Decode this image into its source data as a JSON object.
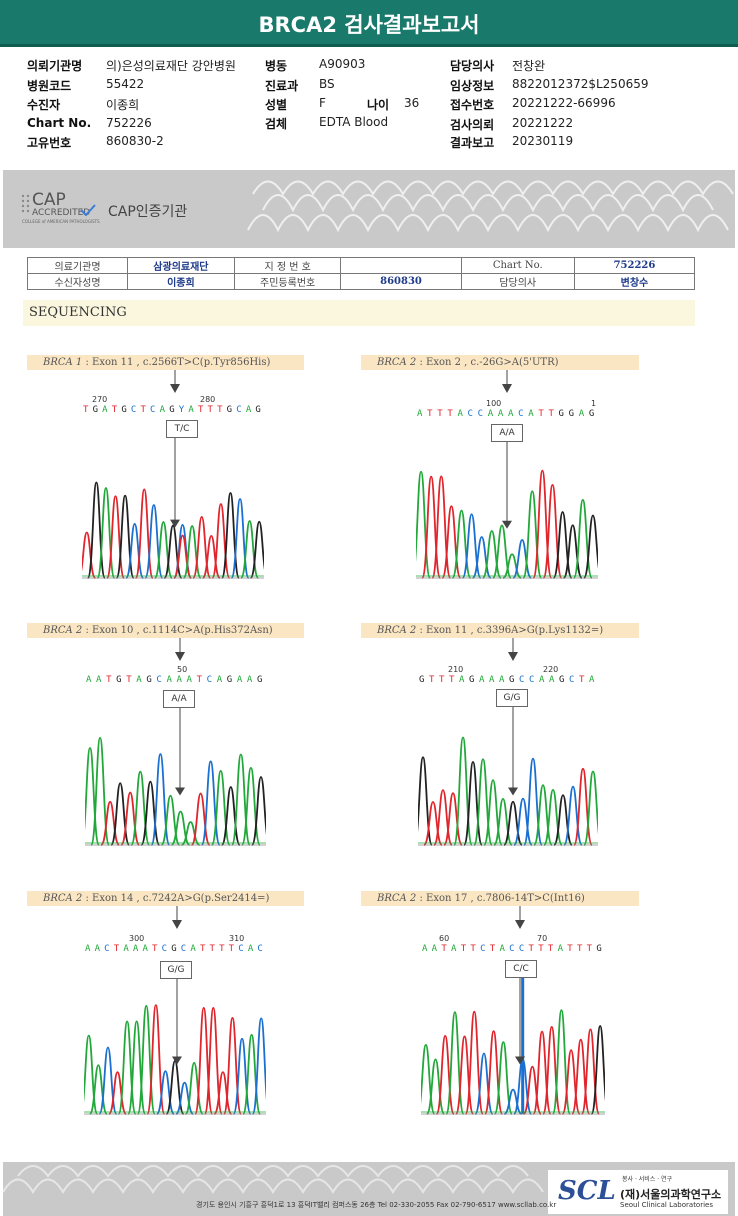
{
  "title": "BRCA2 검사결과보고서",
  "patient_info": [
    {
      "label": "의뢰기관명",
      "value": "의)은성의료재단 강안병원"
    },
    {
      "label": "병원코드",
      "value": "55422"
    },
    {
      "label": "수진자",
      "value": "이종희"
    },
    {
      "label": "Chart No.",
      "value": "752226"
    },
    {
      "label": "고유번호",
      "value": "860830-2"
    },
    {
      "label": "병동",
      "value": "A90903"
    },
    {
      "label": "진료과",
      "value": "BS"
    },
    {
      "label": "성별",
      "value": "F"
    },
    {
      "label": "나이",
      "value": "36"
    },
    {
      "label": "검체",
      "value": "EDTA Blood"
    },
    {
      "label": "담당의사",
      "value": "전창완"
    },
    {
      "label": "임상정보",
      "value": "8822012372$L250659"
    },
    {
      "label": "접수번호",
      "value": "20221222-66996"
    },
    {
      "label": "검사의뢰",
      "value": "20221222"
    },
    {
      "label": "결과보고",
      "value": "20230119"
    }
  ],
  "cap": {
    "logo_text": "CAP",
    "accredited": "ACCREDITED",
    "college": "COLLEGE of AMERICAN PATHOLOGISTS",
    "label": "CAP인증기관"
  },
  "lab_table": {
    "r1": [
      "의료기관명",
      "삼광의료재단",
      "지 정 번 호",
      "",
      "Chart No.",
      "752226"
    ],
    "r2": [
      "수신자성명",
      "이종희",
      "주민등록번호",
      "860830",
      "담당의사",
      "변창수"
    ]
  },
  "section": "SEQUENCING",
  "mutations": [
    {
      "gene": "BRCA 1",
      "desc": " : Exon 11 , c.2566T>C(p.Tyr856His)",
      "genotype": "T/C",
      "sequence": "TGATGCTCAGYATTTGCAG",
      "numbers": [
        "270",
        "280"
      ],
      "icon": "down-arrow-icon"
    },
    {
      "gene": "BRCA 2",
      "desc": " : Exon 2 , c.-26G>A(5'UTR)",
      "genotype": "A/A",
      "sequence": "ATTTACCAAACATTGGAG",
      "numbers": [
        "100",
        "1"
      ],
      "icon": "down-arrow-icon"
    },
    {
      "gene": "BRCA 2",
      "desc": " : Exon 10 , c.1114C>A(p.His372Asn)",
      "genotype": "A/A",
      "sequence": "AATGTAGCAAATCAGAAG",
      "numbers": [
        "50"
      ],
      "icon": "down-arrow-icon"
    },
    {
      "gene": "BRCA 2",
      "desc": " : Exon 11 , c.3396A>G(p.Lys1132=)",
      "genotype": "G/G",
      "sequence": "GTTTAGAAAGCCAAGCTA",
      "numbers": [
        "210",
        "220"
      ],
      "icon": "down-arrow-icon"
    },
    {
      "gene": "BRCA 2",
      "desc": " : Exon 14 , c.7242A>G(p.Ser2414=)",
      "genotype": "G/G",
      "sequence": "AACTAAATCGCATTTTCAC",
      "numbers": [
        "300",
        "310"
      ],
      "icon": "down-arrow-icon"
    },
    {
      "gene": "BRCA 2",
      "desc": " : Exon 17 , c.7806-14T>C(Int16)",
      "genotype": "C/C",
      "sequence": "AATATTCTACCTTTATTTG",
      "numbers": [
        "60",
        "70"
      ],
      "icon": "down-arrow-icon"
    }
  ],
  "footer": {
    "address": "경기도 용인시 기흥구 흥덕1로 13 흥덕IT밸리 컴퍼스동 26층  Tel 02-330-2055  Fax 02-790-6517  www.scllab.co.kr",
    "logo": "SCL",
    "tagline": "봉사 · 서비스 · 연구",
    "name_kr": "(재)서울의과학연구소",
    "name_en": "Seoul Clinical Laboratories"
  },
  "colors": {
    "header": "#197a6b",
    "A": "#22a83a",
    "C": "#1a6fd0",
    "G": "#222222",
    "T": "#e0252c"
  }
}
